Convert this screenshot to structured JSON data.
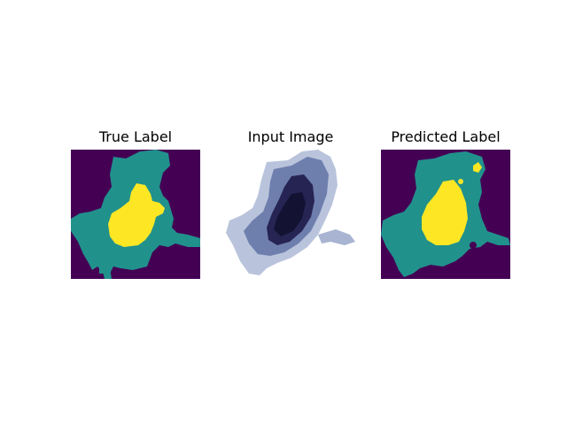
{
  "figure": {
    "panels": [
      {
        "title": "True Label"
      },
      {
        "title": "Input Image"
      },
      {
        "title": "Predicted Label"
      }
    ]
  },
  "colors": {
    "background_class": "#440154",
    "tissue_class": "#21918c",
    "lesion_class": "#fde725",
    "image_bg": "#ffffff",
    "image_dark": "#1c1a45",
    "image_mid": "#4a5a8c",
    "image_light": "#9aa9cc"
  }
}
